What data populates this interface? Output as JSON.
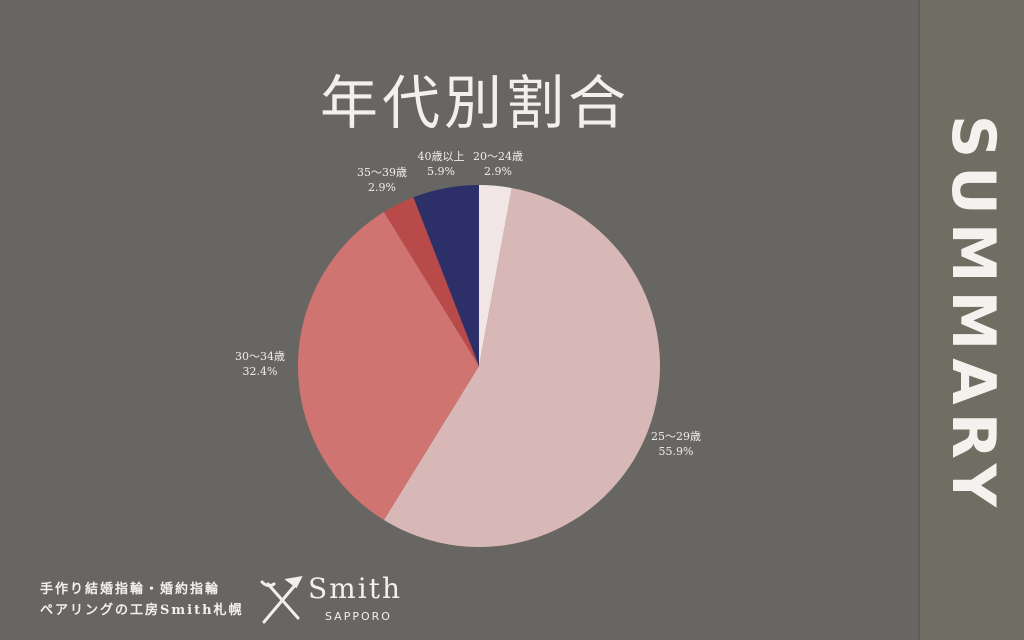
{
  "chart_data": {
    "type": "pie",
    "title": "年代別割合",
    "start": "top",
    "direction": "clockwise",
    "slices": [
      {
        "label": "20〜24歳",
        "value": 2.9,
        "display": "2.9%",
        "color": "#f1e6e5"
      },
      {
        "label": "25〜29歳",
        "value": 55.9,
        "display": "55.9%",
        "color": "#d8b8b6"
      },
      {
        "label": "30〜34歳",
        "value": 32.4,
        "display": "32.4%",
        "color": "#d07472"
      },
      {
        "label": "35〜39歳",
        "value": 2.9,
        "display": "2.9%",
        "color": "#b84a4a"
      },
      {
        "label": "40歳以上",
        "value": 5.9,
        "display": "5.9%",
        "color": "#2d3068"
      }
    ]
  },
  "sidebar": {
    "label": "SUMMARY"
  },
  "footer": {
    "line1": "手作り結婚指輪・婚約指輪",
    "line2": "ペアリングの工房Smith札幌",
    "brand": "Smith",
    "brand_sub": "SAPPORO"
  }
}
